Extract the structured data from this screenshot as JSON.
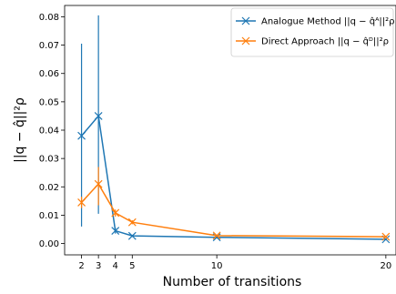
{
  "chart_data": {
    "type": "line",
    "xlabel": "Number of transitions",
    "ylabel": "||q − q̂||²ρ",
    "xlim": [
      1.0,
      20.6
    ],
    "ylim": [
      -0.004,
      0.084
    ],
    "x_ticks": [
      2,
      3,
      4,
      5,
      10,
      20
    ],
    "y_ticks": [
      0.0,
      0.01,
      0.02,
      0.03,
      0.04,
      0.05,
      0.06,
      0.07,
      0.08
    ],
    "y_tick_labels": [
      "0.00",
      "0.01",
      "0.02",
      "0.03",
      "0.04",
      "0.05",
      "0.06",
      "0.07",
      "0.08"
    ],
    "grid": false,
    "legend_position": "top-right",
    "series": [
      {
        "name": "Analogue Method ||q − q̂ᴬ||²ρ",
        "color": "#1f77b4",
        "marker": "x",
        "x": [
          2,
          3,
          4,
          5,
          10,
          20
        ],
        "y": [
          0.038,
          0.045,
          0.0045,
          0.0027,
          0.0022,
          0.0015
        ],
        "err_low": [
          0.006,
          0.0105,
          0.0035,
          0.0023,
          0.0018,
          0.0012
        ],
        "err_high": [
          0.0705,
          0.0805,
          0.0055,
          0.0031,
          0.0026,
          0.0018
        ]
      },
      {
        "name": "Direct Approach ||q − q̂ᴰ||²ρ",
        "color": "#ff7f0e",
        "marker": "x",
        "x": [
          2,
          3,
          4,
          5,
          10,
          20
        ],
        "y": [
          0.0145,
          0.021,
          0.0108,
          0.0075,
          0.0028,
          0.0024
        ],
        "err_low": [
          0.0125,
          0.0135,
          0.0095,
          0.0068,
          0.0025,
          0.0022
        ],
        "err_high": [
          0.0165,
          0.027,
          0.012,
          0.0082,
          0.0031,
          0.0026
        ]
      }
    ]
  }
}
